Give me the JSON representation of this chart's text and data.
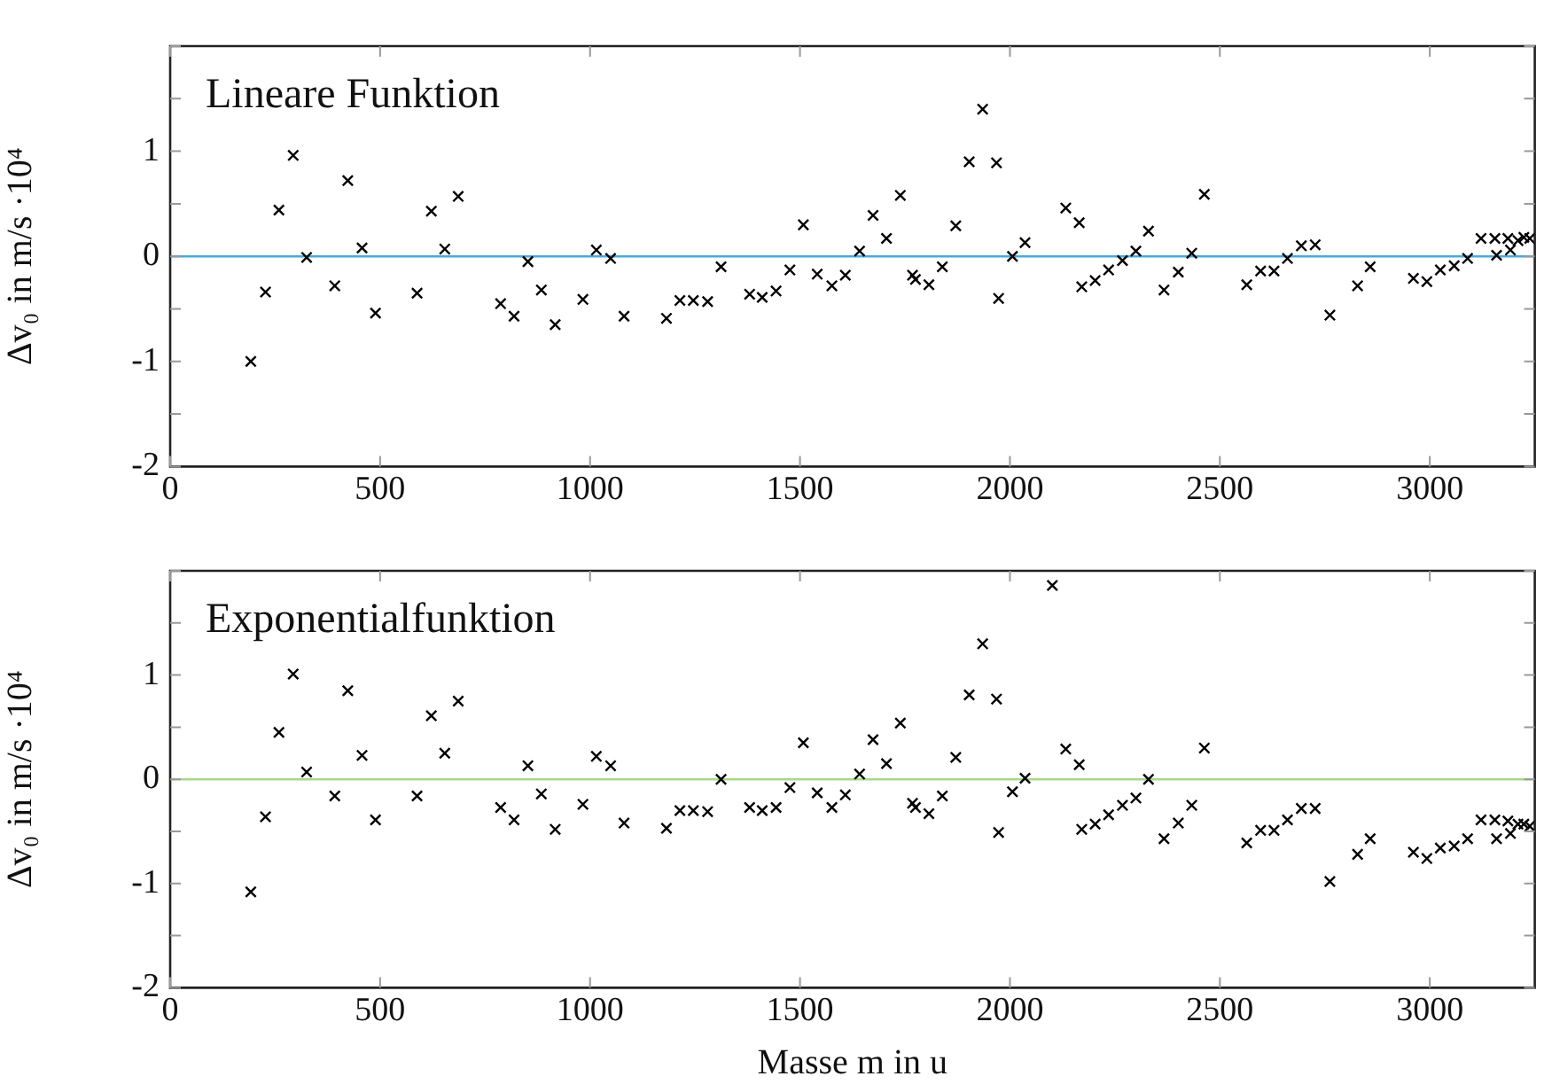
{
  "chart_data": [
    {
      "type": "scatter",
      "title": "Lineare Funktion",
      "ylabel": "Δv₀ in m/s ·10⁴",
      "marker": "cross",
      "legend": false,
      "xlim": [
        0,
        3250
      ],
      "xticks": [
        0,
        500,
        1000,
        1500,
        2000,
        2500,
        3000
      ],
      "ylim": [
        -2,
        2
      ],
      "yticks": [
        -2,
        {
          "value": -1.5,
          "label": null
        },
        -1,
        {
          "value": -0.5,
          "label": null
        },
        0,
        {
          "value": 0.5,
          "label": null
        },
        1,
        {
          "value": 1.5,
          "label": null
        },
        {
          "value": 2,
          "label": null
        }
      ],
      "ref_lines": [
        {
          "axis": "y",
          "value": 0,
          "color": "#4aa8d8"
        }
      ],
      "series": [
        {
          "color": "#000000",
          "x": [
            192,
            227,
            259,
            293,
            325,
            392,
            423,
            457,
            489,
            588,
            622,
            654,
            686,
            787,
            819,
            852,
            884,
            917,
            983,
            1015,
            1049,
            1081,
            1182,
            1214,
            1246,
            1280,
            1312,
            1380,
            1410,
            1443,
            1476,
            1508,
            1541,
            1576,
            1608,
            1642,
            1674,
            1706,
            1739,
            1768,
            1775,
            1807,
            1839,
            1871,
            1903,
            1935,
            1968,
            1973,
            2006,
            2036,
            2133,
            2165,
            2171,
            2203,
            2235,
            2268,
            2300,
            2330,
            2367,
            2401,
            2433,
            2463,
            2564,
            2597,
            2629,
            2661,
            2694,
            2727,
            2762,
            2828,
            2858,
            2961,
            2993,
            3025,
            3058,
            3090,
            3122,
            3155,
            3159,
            3186,
            3192,
            3210,
            3224,
            3238
          ],
          "values": [
            -1.0,
            -0.34,
            0.44,
            0.96,
            -0.01,
            -0.28,
            0.72,
            0.08,
            -0.54,
            -0.35,
            0.43,
            0.07,
            0.57,
            -0.45,
            -0.57,
            -0.05,
            -0.32,
            -0.65,
            -0.41,
            0.06,
            -0.02,
            -0.57,
            -0.59,
            -0.42,
            -0.42,
            -0.43,
            -0.1,
            -0.36,
            -0.39,
            -0.33,
            -0.13,
            0.3,
            -0.17,
            -0.28,
            -0.18,
            0.05,
            0.39,
            0.17,
            0.58,
            -0.18,
            -0.22,
            -0.27,
            -0.1,
            0.29,
            0.9,
            1.4,
            0.89,
            -0.4,
            0.0,
            0.13,
            0.46,
            0.32,
            -0.29,
            -0.23,
            -0.13,
            -0.04,
            0.05,
            0.24,
            -0.32,
            -0.15,
            0.03,
            0.59,
            -0.27,
            -0.14,
            -0.14,
            -0.02,
            0.1,
            0.11,
            -0.56,
            -0.28,
            -0.1,
            -0.21,
            -0.24,
            -0.13,
            -0.09,
            -0.02,
            0.17,
            0.17,
            0.01,
            0.17,
            0.06,
            0.15,
            0.18,
            0.17
          ]
        }
      ]
    },
    {
      "type": "scatter",
      "title": "Exponentialfunktion",
      "ylabel": "Δv₀ in m/s ·10⁴",
      "xlabel": "Masse m in u",
      "marker": "cross",
      "legend": false,
      "xlim": [
        0,
        3250
      ],
      "xticks": [
        0,
        500,
        1000,
        1500,
        2000,
        2500,
        3000
      ],
      "ylim": [
        -2,
        2
      ],
      "yticks": [
        -2,
        {
          "value": -1.5,
          "label": null
        },
        -1,
        {
          "value": -0.5,
          "label": null
        },
        0,
        {
          "value": 0.5,
          "label": null
        },
        1,
        {
          "value": 1.5,
          "label": null
        },
        {
          "value": 2,
          "label": null
        }
      ],
      "ref_lines": [
        {
          "axis": "y",
          "value": 0,
          "color": "#a6d98a"
        }
      ],
      "series": [
        {
          "color": "#000000",
          "x": [
            192,
            227,
            259,
            293,
            325,
            392,
            423,
            457,
            489,
            588,
            622,
            654,
            686,
            787,
            819,
            852,
            884,
            917,
            983,
            1015,
            1049,
            1081,
            1182,
            1214,
            1246,
            1280,
            1312,
            1380,
            1410,
            1443,
            1476,
            1508,
            1541,
            1576,
            1608,
            1642,
            1674,
            1706,
            1739,
            1768,
            1775,
            1807,
            1839,
            1871,
            1903,
            1935,
            1968,
            1973,
            2006,
            2036,
            2101,
            2133,
            2165,
            2171,
            2203,
            2235,
            2268,
            2300,
            2330,
            2367,
            2401,
            2433,
            2463,
            2564,
            2597,
            2629,
            2661,
            2694,
            2727,
            2762,
            2828,
            2858,
            2961,
            2993,
            3025,
            3058,
            3090,
            3122,
            3155,
            3159,
            3186,
            3192,
            3210,
            3224,
            3238
          ],
          "values": [
            -1.08,
            -0.36,
            0.45,
            1.01,
            0.07,
            -0.16,
            0.85,
            0.23,
            -0.39,
            -0.16,
            0.61,
            0.25,
            0.75,
            -0.27,
            -0.39,
            0.13,
            -0.14,
            -0.48,
            -0.24,
            0.22,
            0.13,
            -0.42,
            -0.47,
            -0.3,
            -0.3,
            -0.31,
            0.0,
            -0.27,
            -0.3,
            -0.27,
            -0.08,
            0.35,
            -0.13,
            -0.27,
            -0.15,
            0.05,
            0.38,
            0.15,
            0.54,
            -0.23,
            -0.27,
            -0.33,
            -0.16,
            0.21,
            0.81,
            1.3,
            0.77,
            -0.51,
            -0.12,
            0.01,
            1.86,
            0.29,
            0.14,
            -0.48,
            -0.43,
            -0.34,
            -0.25,
            -0.18,
            0.0,
            -0.57,
            -0.42,
            -0.25,
            0.3,
            -0.61,
            -0.49,
            -0.49,
            -0.39,
            -0.28,
            -0.28,
            -0.98,
            -0.72,
            -0.57,
            -0.7,
            -0.76,
            -0.66,
            -0.64,
            -0.57,
            -0.39,
            -0.39,
            -0.57,
            -0.4,
            -0.52,
            -0.43,
            -0.43,
            -0.45
          ]
        }
      ]
    }
  ]
}
